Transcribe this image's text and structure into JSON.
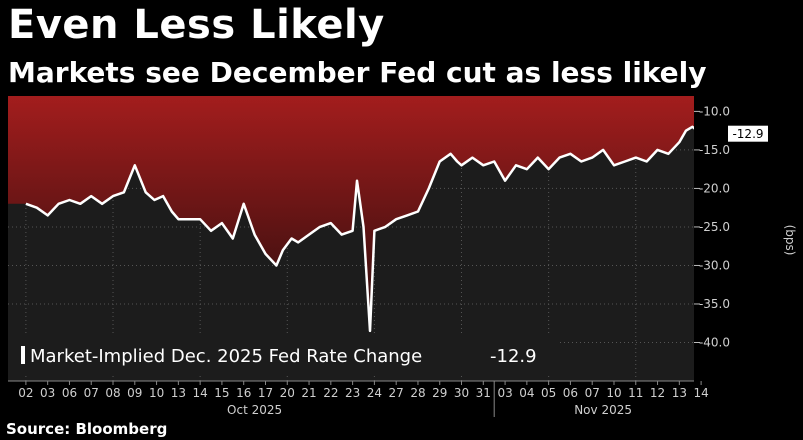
{
  "title": "Even Less Likely",
  "subtitle": "Markets see December Fed cut as less likely",
  "source": "Source: Bloomberg",
  "colors": {
    "background": "#000000",
    "plot_bg": "#1c1c1c",
    "fill_top": "#a31d1d",
    "fill_bottom": "#2a0d0d",
    "line": "#ffffff",
    "grid": "#555555"
  },
  "chart_data": {
    "type": "area",
    "title": "Even Less Likely",
    "subtitle": "Markets see December Fed cut as less likely",
    "ylabel": "(bps)",
    "xlabel": "",
    "ylim": [
      -45,
      -8
    ],
    "y_ticks": [
      -10.0,
      -15.0,
      -20.0,
      -25.0,
      -30.0,
      -35.0,
      -40.0
    ],
    "y_tick_labels": [
      "-10.0",
      "-15.0",
      "-20.0",
      "-25.0",
      "-30.0",
      "-35.0",
      "-40.0"
    ],
    "grid": true,
    "fill": "above line, from line to top of chart",
    "x_tick_labels": [
      "02",
      "03",
      "06",
      "07",
      "08",
      "09",
      "10",
      "13",
      "14",
      "15",
      "16",
      "17",
      "20",
      "21",
      "22",
      "23",
      "24",
      "27",
      "28",
      "29",
      "30",
      "31",
      "03",
      "04",
      "05",
      "06",
      "07",
      "10",
      "11",
      "12",
      "13",
      "14"
    ],
    "month_labels": [
      "Oct 2025",
      "Nov 2025"
    ],
    "series": [
      {
        "name": "Market-Implied Dec. 2025 Fed Rate Change",
        "last_value": -12.9,
        "last_value_label": "-12.9",
        "x": [
          0,
          0.5,
          1,
          1.5,
          2,
          2.5,
          3,
          3.5,
          4,
          4.5,
          5,
          5.5,
          5.9,
          6.3,
          6.7,
          7,
          7.5,
          8,
          8.5,
          9,
          9.5,
          10,
          10.5,
          11,
          11.5,
          11.8,
          12.2,
          12.5,
          13,
          13.5,
          14,
          14.5,
          15,
          15.2,
          15.5,
          15.8,
          16,
          16.5,
          17,
          17.5,
          18,
          18.5,
          19,
          19.5,
          19.8,
          20,
          20.5,
          21,
          21.5,
          22,
          22.5,
          23,
          23.5,
          24,
          24.5,
          25,
          25.5,
          26,
          26.5,
          27,
          27.5,
          28,
          28.5,
          29,
          29.5,
          30,
          30.3,
          30.6,
          31
        ],
        "values": [
          -22.0,
          -22.5,
          -23.5,
          -22.0,
          -21.5,
          -22.0,
          -21.0,
          -22.0,
          -21.0,
          -20.5,
          -17.0,
          -20.5,
          -21.5,
          -21.0,
          -23.0,
          -24.0,
          -24.0,
          -24.0,
          -25.5,
          -24.5,
          -26.5,
          -22.0,
          -26.0,
          -28.5,
          -30.0,
          -28.0,
          -26.5,
          -27.0,
          -26.0,
          -25.0,
          -24.5,
          -26.0,
          -25.5,
          -19.0,
          -25.0,
          -38.5,
          -25.5,
          -25.0,
          -24.0,
          -23.5,
          -23.0,
          -20.0,
          -16.5,
          -15.5,
          -16.5,
          -17.0,
          -16.0,
          -17.0,
          -16.5,
          -19.0,
          -17.0,
          -17.5,
          -16.0,
          -17.5,
          -16.0,
          -15.5,
          -16.5,
          -16.0,
          -15.0,
          -17.0,
          -16.5,
          -16.0,
          -16.5,
          -15.0,
          -15.5,
          -14.0,
          -12.5,
          -12.0,
          -12.9
        ]
      }
    ]
  }
}
